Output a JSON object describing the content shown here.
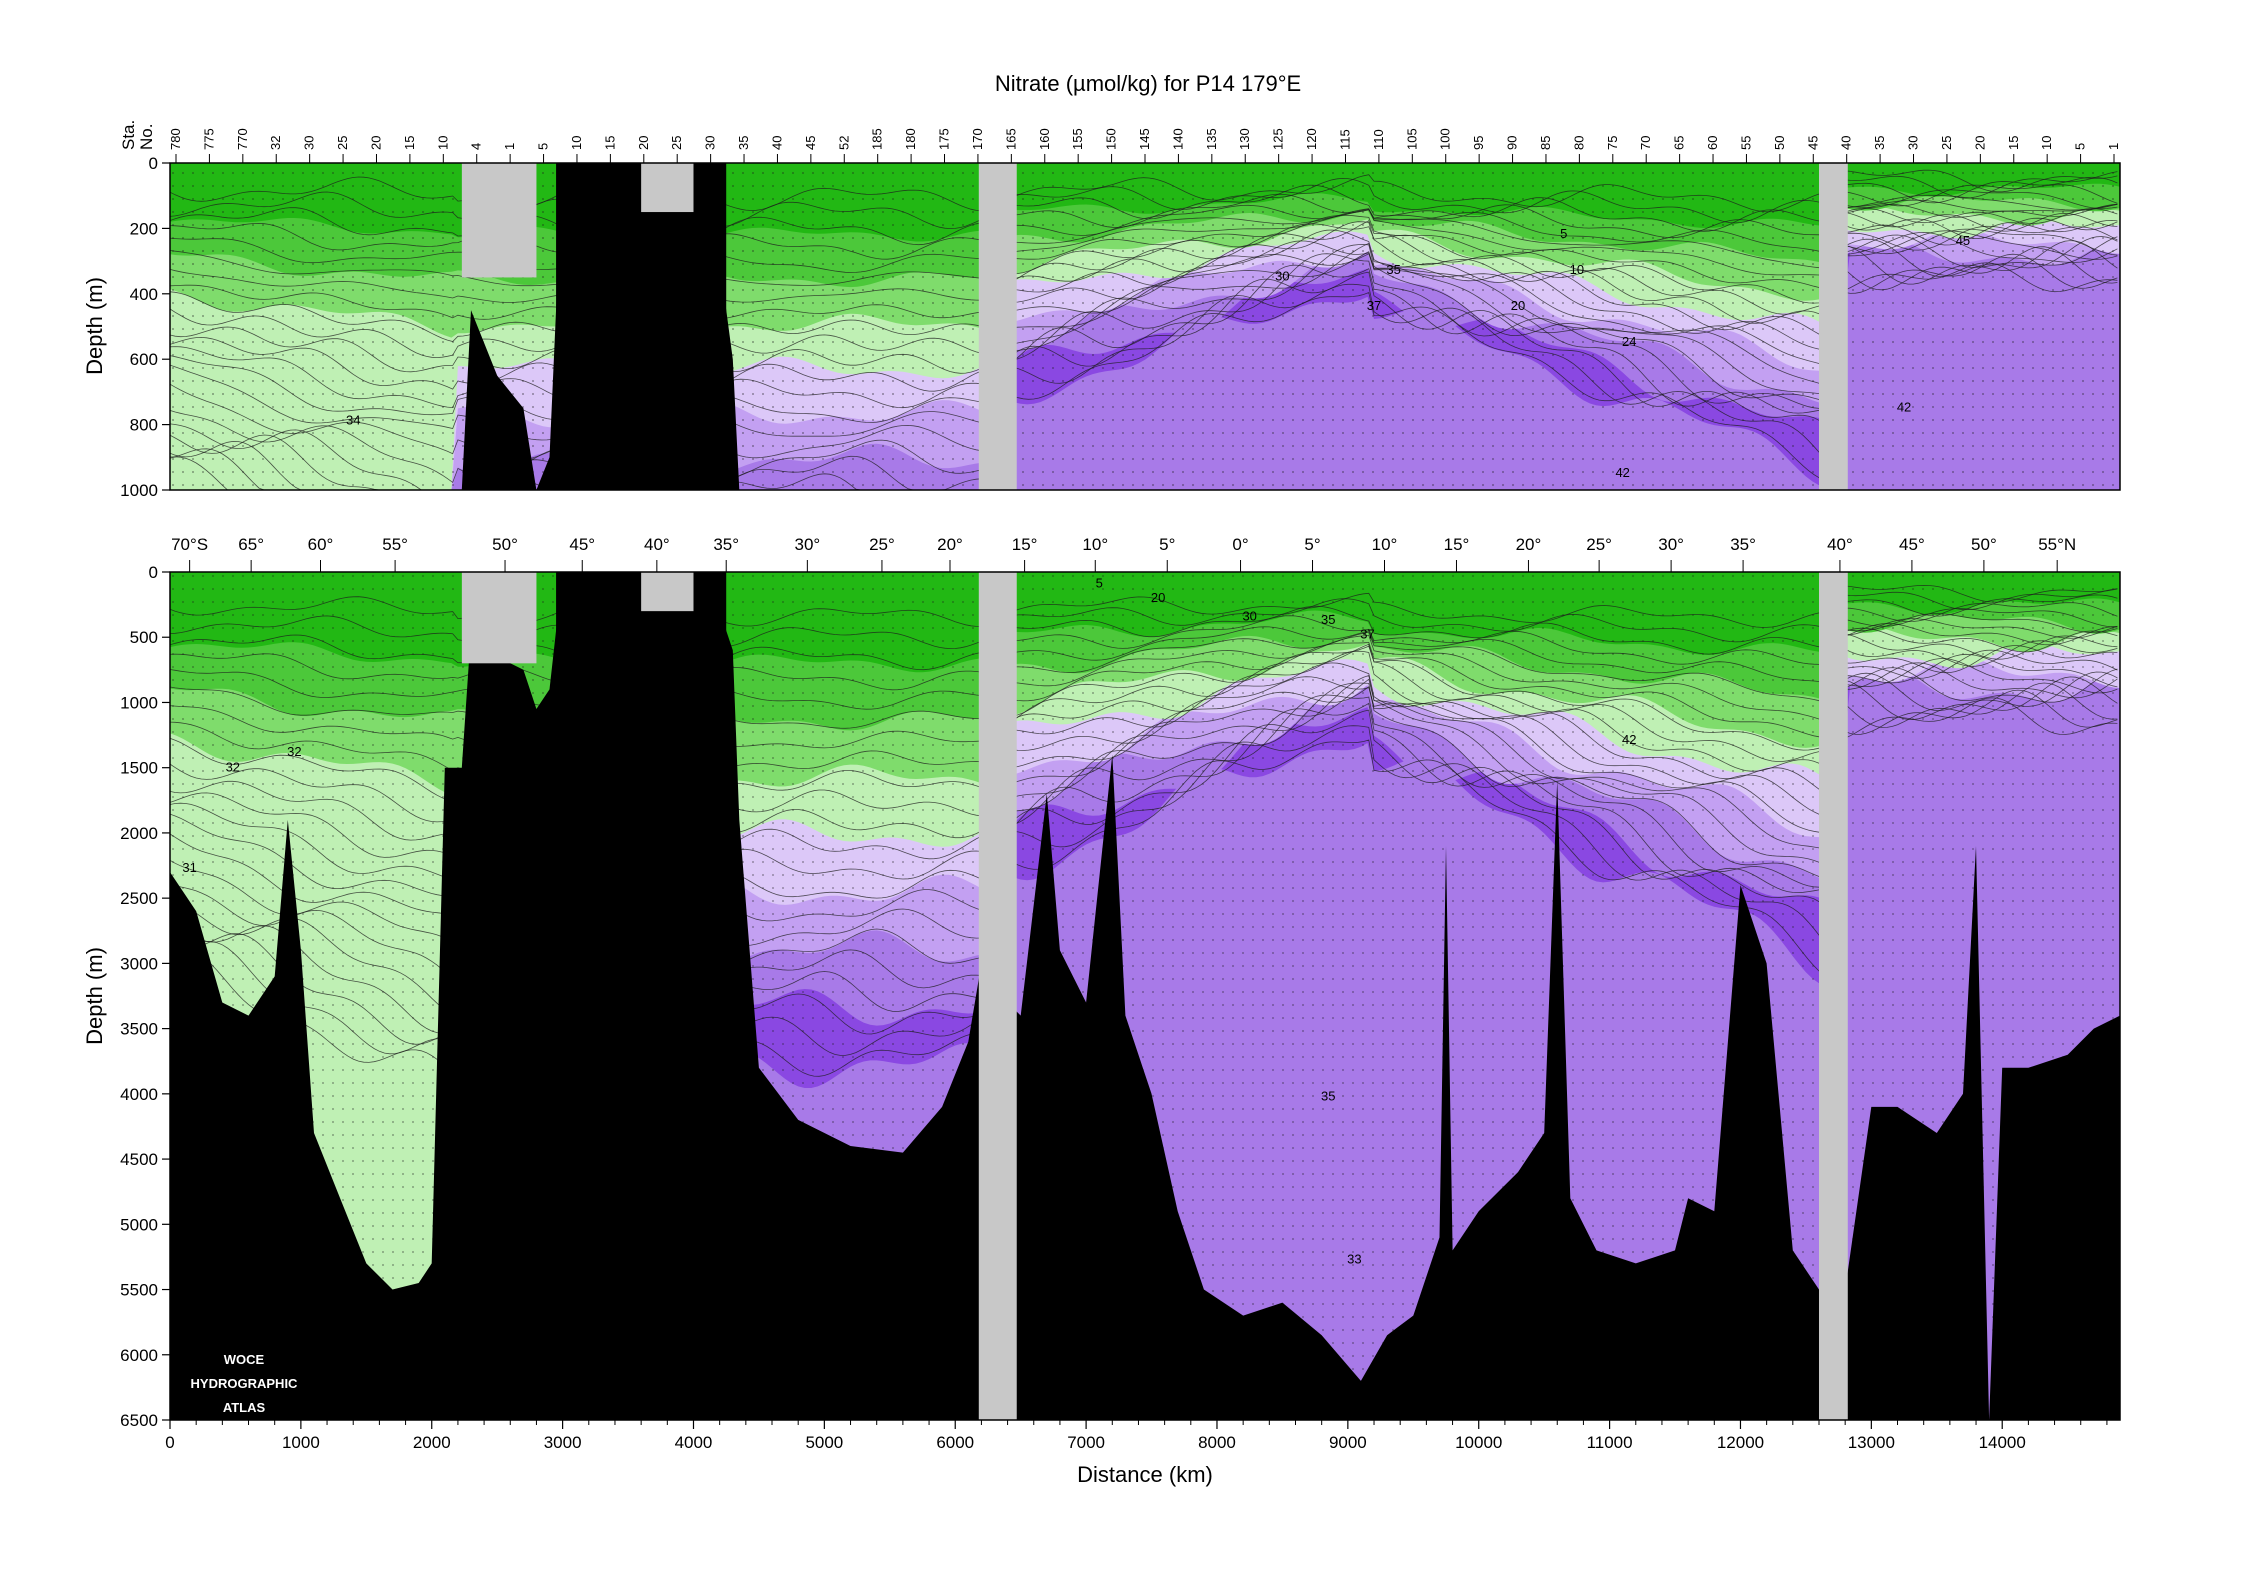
{
  "title": "Nitrate (µmol/kg) for P14 179°E",
  "logo_lines": [
    "WOCE",
    "HYDROGRAPHIC",
    "ATLAS"
  ],
  "station_axis_label": [
    "Sta.",
    "No."
  ],
  "station_ticks": [
    "780",
    "775",
    "770",
    "32",
    "30",
    "25",
    "20",
    "15",
    "10",
    "4",
    "1",
    "5",
    "10",
    "15",
    "20",
    "25",
    "30",
    "35",
    "40",
    "45",
    "52",
    "185",
    "180",
    "175",
    "170",
    "165",
    "160",
    "155",
    "150",
    "145",
    "140",
    "135",
    "130",
    "125",
    "120",
    "115",
    "110",
    "105",
    "100",
    "95",
    "90",
    "85",
    "80",
    "75",
    "70",
    "65",
    "60",
    "55",
    "50",
    "45",
    "40",
    "35",
    "30",
    "25",
    "20",
    "15",
    "10",
    "5",
    "1"
  ],
  "latitude_ticks": [
    "70°S",
    "65°",
    "60°",
    "55°",
    "50°",
    "45°",
    "40°",
    "35°",
    "30°",
    "25°",
    "20°",
    "15°",
    "10°",
    "5°",
    "0°",
    "5°",
    "10°",
    "15°",
    "20°",
    "25°",
    "30°",
    "35°",
    "40°",
    "45°",
    "50°",
    "55°N"
  ],
  "colors": {
    "green_dark": "#22b814",
    "green_mid": "#4cc83a",
    "green_light": "#7fdc6c",
    "green_pale": "#bff0b4",
    "purple_pale": "#dcc8f8",
    "purple_light": "#c3a0f2",
    "purple_mid": "#a87ae8",
    "purple_dark": "#8a48e2",
    "land": "#000000",
    "gap": "#c8c8c8"
  },
  "chart_data": [
    {
      "type": "contour-section",
      "panel": "upper",
      "title": "Nitrate (µmol/kg) for P14 179°E",
      "xlabel": "",
      "ylabel": "Depth (m)",
      "xlim": [
        0,
        14900
      ],
      "ylim": [
        1000,
        0
      ],
      "y_ticks": [
        0,
        200,
        400,
        600,
        800,
        1000
      ],
      "contour_labels": [
        {
          "text": "34",
          "x": 1400,
          "y": 800
        },
        {
          "text": "5",
          "x": 10650,
          "y": 230
        },
        {
          "text": "10",
          "x": 10750,
          "y": 340
        },
        {
          "text": "20",
          "x": 10300,
          "y": 450
        },
        {
          "text": "24",
          "x": 11150,
          "y": 560
        },
        {
          "text": "30",
          "x": 8500,
          "y": 360
        },
        {
          "text": "35",
          "x": 9350,
          "y": 340
        },
        {
          "text": "37",
          "x": 9200,
          "y": 450
        },
        {
          "text": "42",
          "x": 11100,
          "y": 960
        },
        {
          "text": "42",
          "x": 13250,
          "y": 760
        },
        {
          "text": "45",
          "x": 13700,
          "y": 250
        }
      ]
    },
    {
      "type": "contour-section",
      "panel": "lower",
      "xlabel": "Distance (km)",
      "ylabel": "Depth (m)",
      "xlim": [
        0,
        14900
      ],
      "ylim": [
        6500,
        0
      ],
      "x_ticks": [
        0,
        1000,
        2000,
        3000,
        4000,
        5000,
        6000,
        7000,
        8000,
        9000,
        10000,
        11000,
        12000,
        13000,
        14000
      ],
      "y_ticks": [
        0,
        500,
        1000,
        1500,
        2000,
        2500,
        3000,
        3500,
        4000,
        4500,
        5000,
        5500,
        6000,
        6500
      ],
      "contour_labels": [
        {
          "text": "31",
          "x": 150,
          "y": 2300
        },
        {
          "text": "32",
          "x": 480,
          "y": 1530
        },
        {
          "text": "32",
          "x": 950,
          "y": 1410
        },
        {
          "text": "5",
          "x": 7100,
          "y": 120
        },
        {
          "text": "20",
          "x": 7550,
          "y": 230
        },
        {
          "text": "30",
          "x": 8250,
          "y": 370
        },
        {
          "text": "35",
          "x": 8850,
          "y": 400
        },
        {
          "text": "37",
          "x": 9150,
          "y": 510
        },
        {
          "text": "42",
          "x": 11150,
          "y": 1320
        },
        {
          "text": "35",
          "x": 8850,
          "y": 4050
        },
        {
          "text": "33",
          "x": 9050,
          "y": 5300
        }
      ]
    }
  ]
}
